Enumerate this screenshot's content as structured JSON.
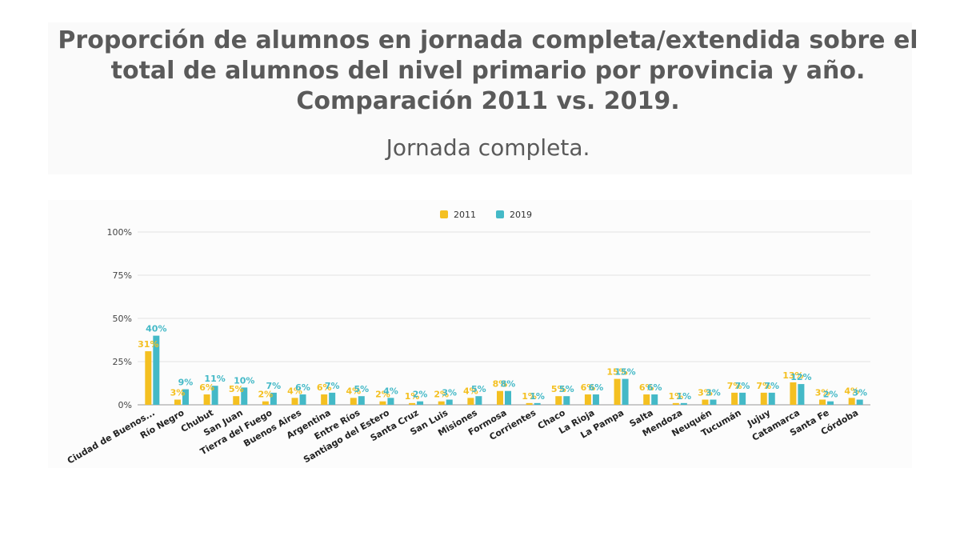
{
  "header": {
    "title": "Proporción de alumnos en jornada completa/extendida sobre el total de alumnos del nivel primario por provincia y año. Comparación 2011 vs. 2019.",
    "subtitle": "Jornada completa."
  },
  "colors": {
    "series_2011": "#f4c021",
    "series_2019": "#44b9c7"
  },
  "chart_data": {
    "type": "bar",
    "categories": [
      "Ciudad de Buenos...",
      "Río Negro",
      "Chubut",
      "San Juan",
      "Tierra del Fuego",
      "Buenos Aires",
      "Argentina",
      "Entre Ríos",
      "Santiago del Estero",
      "Santa Cruz",
      "San Luis",
      "Misiones",
      "Formosa",
      "Corrientes",
      "Chaco",
      "La Rioja",
      "La Pampa",
      "Salta",
      "Mendoza",
      "Neuquén",
      "Tucumán",
      "Jujuy",
      "Catamarca",
      "Santa Fe",
      "Córdoba"
    ],
    "series": [
      {
        "name": "2011",
        "values": [
          31,
          3,
          6,
          5,
          2,
          4,
          6,
          4,
          2,
          1,
          2,
          4,
          8,
          1,
          5,
          6,
          15,
          6,
          1,
          3,
          7,
          7,
          13,
          3,
          4
        ]
      },
      {
        "name": "2019",
        "values": [
          40,
          9,
          11,
          10,
          7,
          6,
          7,
          5,
          4,
          2,
          3,
          5,
          8,
          1,
          5,
          6,
          15,
          6,
          1,
          3,
          7,
          7,
          12,
          2,
          3
        ]
      }
    ],
    "ylim": [
      0,
      100
    ],
    "y_ticks": [
      "0%",
      "25%",
      "50%",
      "75%",
      "100%"
    ],
    "grid": true,
    "legend_position": "top-center"
  }
}
